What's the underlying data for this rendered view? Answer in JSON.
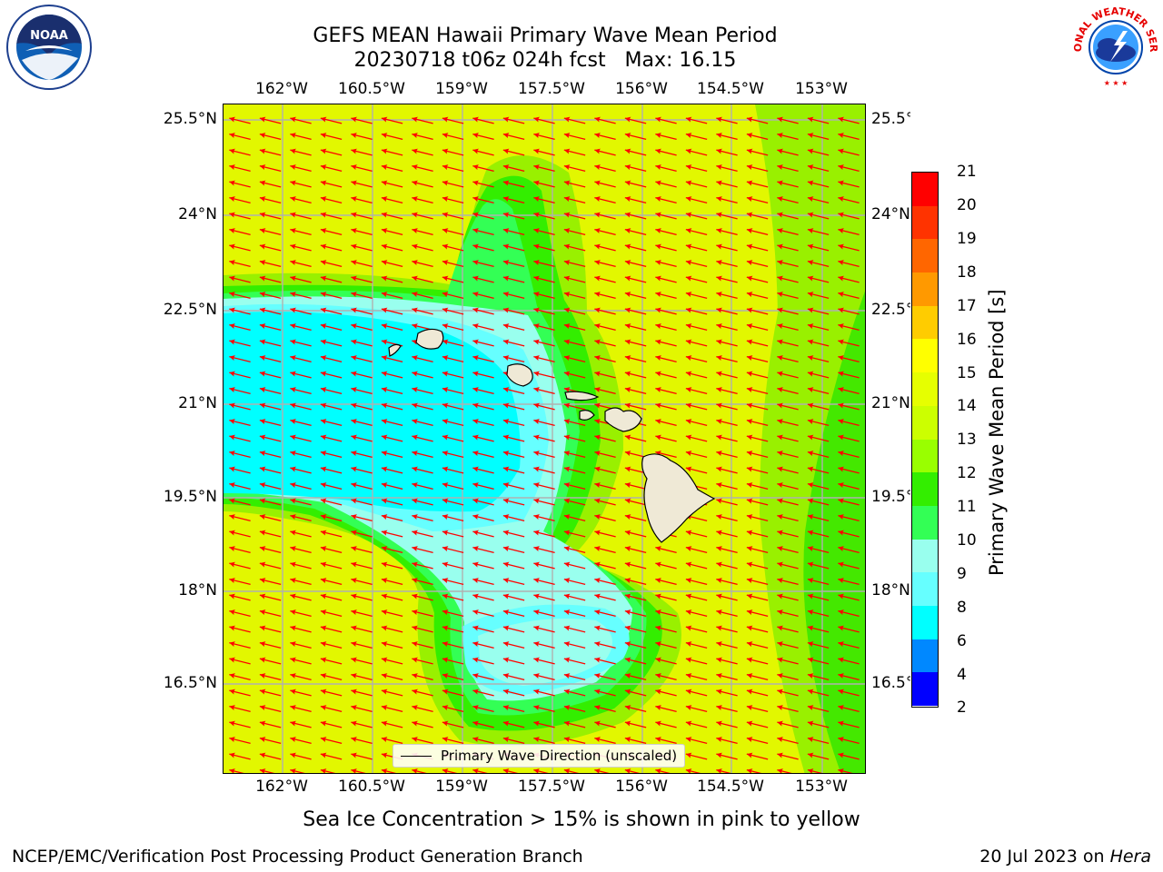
{
  "title": {
    "line1": "GEFS MEAN Hawaii Primary Wave Mean Period",
    "line2": "20230718 t06z 024h fcst   Max: 16.15"
  },
  "logos": {
    "left": "noaa-logo",
    "right": "national-weather-service-logo",
    "left_text": "NOAA",
    "right_text": "NATIONAL WEATHER SERVICE"
  },
  "map": {
    "lon_ticks": [
      "162°W",
      "160.5°W",
      "159°W",
      "157.5°W",
      "156°W",
      "154.5°W",
      "153°W"
    ],
    "lat_ticks": [
      "25.5°N",
      "24°N",
      "22.5°N",
      "21°N",
      "19.5°N",
      "18°N",
      "16.5°N"
    ],
    "lon_range": [
      -163,
      -152.6
    ],
    "lat_range": [
      15.2,
      25.8
    ],
    "legend_label": "Primary Wave Direction (unscaled)",
    "arrow_color": "#ff0000",
    "land_color": "#efe9d6"
  },
  "colorbar": {
    "label": "Primary Wave Mean Period [s]",
    "ticks": [
      "21",
      "20",
      "19",
      "18",
      "17",
      "16",
      "15",
      "14",
      "13",
      "12",
      "11",
      "10",
      "9",
      "8",
      "6",
      "4",
      "2"
    ],
    "colors": [
      "#ff0000",
      "#ff3300",
      "#ff6600",
      "#ff9900",
      "#ffcc00",
      "#ffff00",
      "#e6ff00",
      "#ccff00",
      "#99ff00",
      "#33ee00",
      "#33ff55",
      "#99ffee",
      "#66ffff",
      "#00ffff",
      "#0088ff",
      "#0000ff"
    ]
  },
  "caption": "Sea Ice Concentration > 15% is shown in pink to yellow",
  "footer": {
    "left": "NCEP/EMC/Verification Post Processing Product Generation Branch",
    "right_prefix": "20 Jul 2023 on ",
    "right_machine": "Hera"
  }
}
